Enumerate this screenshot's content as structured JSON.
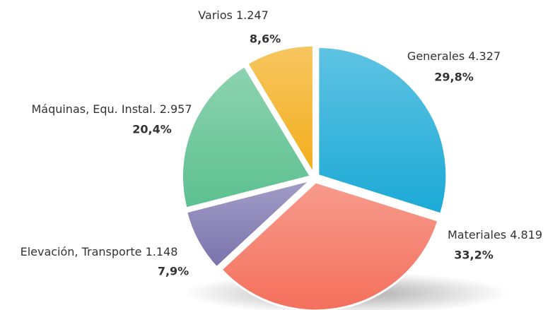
{
  "chart_data": {
    "type": "pie",
    "categories": [
      "Generales",
      "Materiales",
      "Elevación, Transporte",
      "Máquinas, Equ. Instal.",
      "Varios"
    ],
    "values": [
      4327,
      4819,
      1148,
      2957,
      1247
    ],
    "value_labels": [
      "4.327",
      "4.819",
      "1.148",
      "2.957",
      "1.247"
    ],
    "percentages": [
      29.8,
      33.2,
      7.9,
      20.4,
      8.6
    ],
    "percentage_labels": [
      "29,8%",
      "33,2%",
      "7,9%",
      "20,4%",
      "8,6%"
    ],
    "colors": [
      "#1ba9d6",
      "#f4705c",
      "#7a73ad",
      "#5cc08f",
      "#f3ae1c"
    ]
  }
}
